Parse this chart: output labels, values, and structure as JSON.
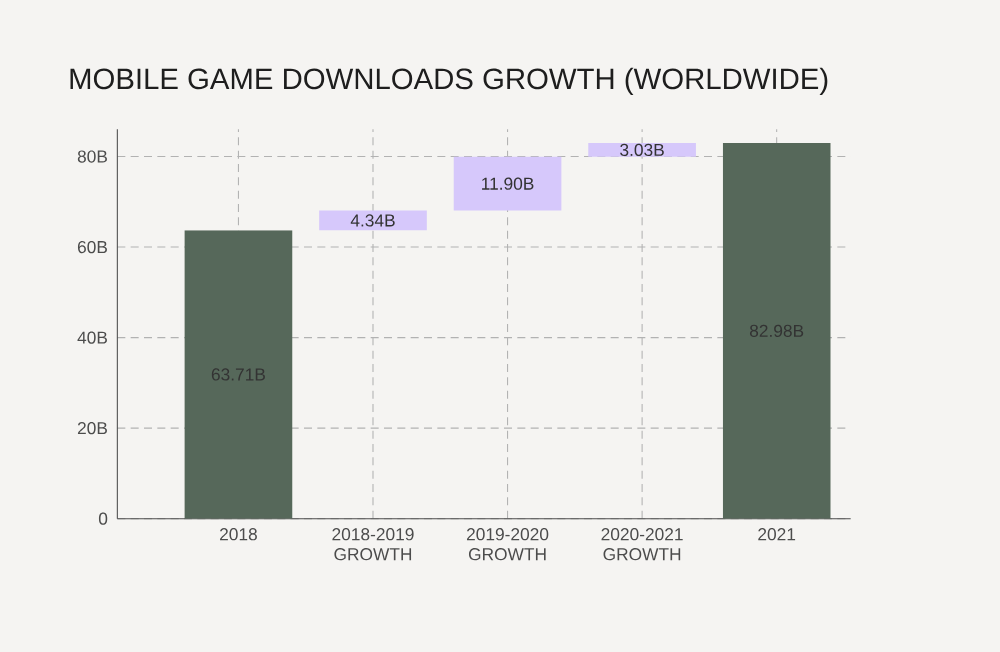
{
  "chart_data": {
    "type": "bar",
    "title": "MOBILE GAME DOWNLOADS GROWTH (WORLDWIDE)",
    "categories": [
      "2018",
      "2018-2019 GROWTH",
      "2019-2020 GROWTH",
      "2020-2021 GROWTH",
      "2021"
    ],
    "values": [
      63.71,
      4.34,
      11.9,
      3.03,
      82.98
    ],
    "base": [
      0,
      63.71,
      68.05,
      79.95,
      0
    ],
    "colors": [
      "#56685a",
      "#d6c8fb",
      "#d6c8fb",
      "#d6c8fb",
      "#56685a"
    ],
    "value_labels": [
      "63.71B",
      "4.34B",
      "11.90B",
      "3.03B",
      "82.98B"
    ],
    "ylim": [
      0,
      86
    ],
    "yticks": [
      {
        "value": 0,
        "label": "0"
      },
      {
        "value": 20,
        "label": "20B"
      },
      {
        "value": 40,
        "label": "40B"
      },
      {
        "value": 60,
        "label": "60B"
      },
      {
        "value": 80,
        "label": "80B"
      }
    ],
    "grid": true
  }
}
